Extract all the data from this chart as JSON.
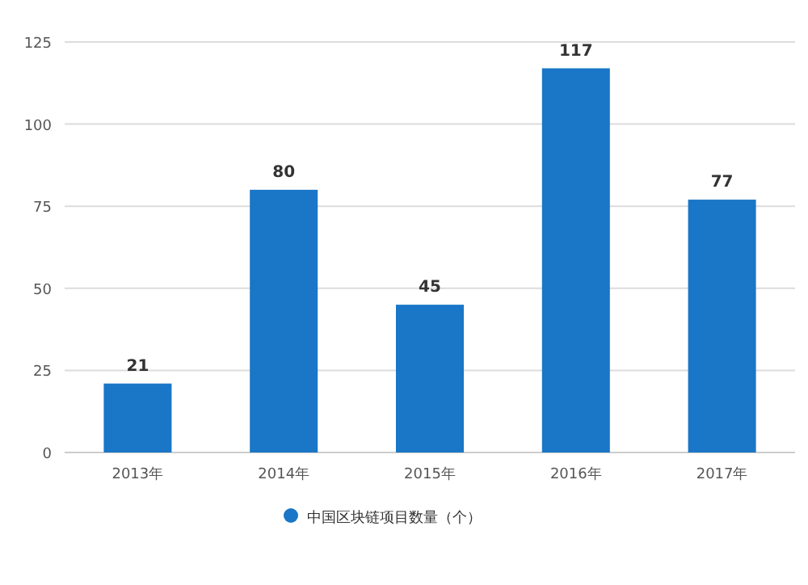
{
  "chart_data": {
    "type": "bar",
    "categories": [
      "2013年",
      "2014年",
      "2015年",
      "2016年",
      "2017年"
    ],
    "series": [
      {
        "name": "中国区块链项目数量（个）",
        "color": "#1a76c6",
        "values": [
          21,
          80,
          45,
          117,
          77
        ]
      }
    ],
    "ylim": [
      0,
      125
    ],
    "yticks": [
      0,
      25,
      50,
      75,
      100,
      125
    ],
    "grid": "y",
    "legend": "bottom",
    "data_labels": true
  }
}
